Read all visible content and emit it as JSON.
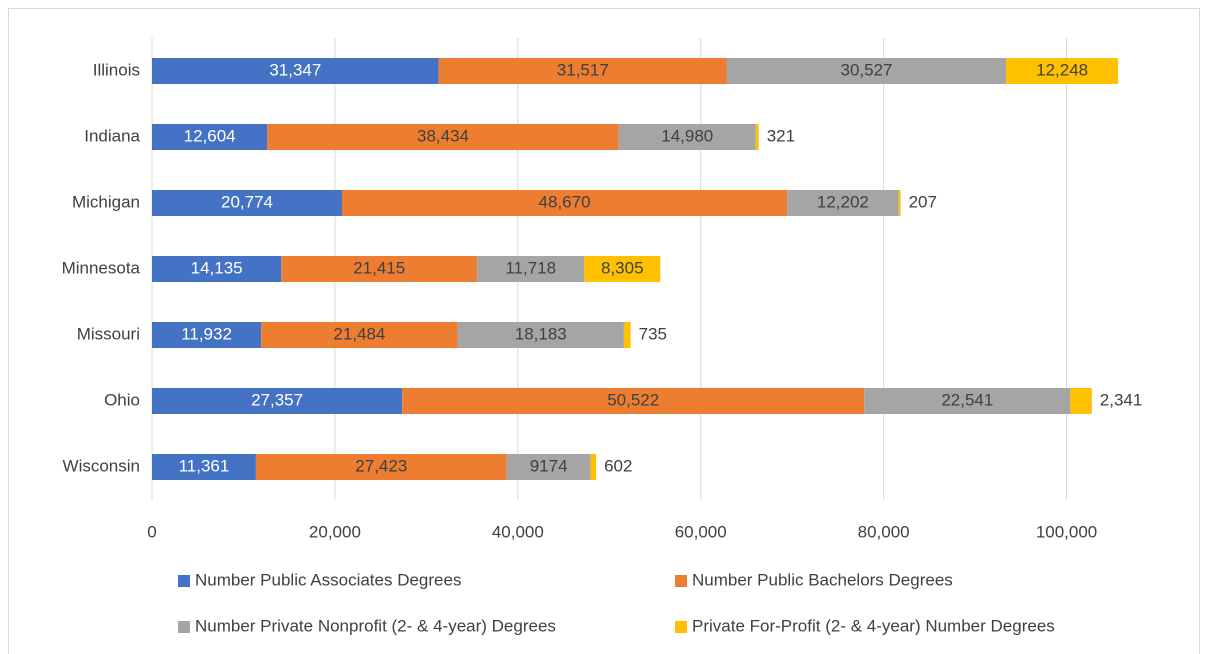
{
  "chart_data": {
    "type": "stacked-bar-horizontal",
    "categories": [
      "Illinois",
      "Indiana",
      "Michigan",
      "Minnesota",
      "Missouri",
      "Ohio",
      "Wisconsin"
    ],
    "series": [
      {
        "name": "Number Public Associates Degrees",
        "color": "#4472c4",
        "values": [
          31347,
          12604,
          20774,
          14135,
          11932,
          27357,
          11361
        ],
        "value_labels": [
          "31,347",
          "12,604",
          "20,774",
          "14,135",
          "11,932",
          "27,357",
          "11,361"
        ]
      },
      {
        "name": "Number Public Bachelors Degrees",
        "color": "#ed7d31",
        "values": [
          31517,
          38434,
          48670,
          21415,
          21484,
          50522,
          27423
        ],
        "value_labels": [
          "31,517",
          "38,434",
          "48,670",
          "21,415",
          "21,484",
          "50,522",
          "27,423"
        ]
      },
      {
        "name": "Number Private Nonprofit (2- & 4-year) Degrees",
        "color": "#a5a5a5",
        "values": [
          30527,
          14980,
          12202,
          11718,
          18183,
          22541,
          9174
        ],
        "value_labels": [
          "30,527",
          "14,980",
          "12,202",
          "11,718",
          "18,183",
          "22,541",
          "9174"
        ]
      },
      {
        "name": "Private For-Profit (2- & 4-year) Number Degrees",
        "color": "#ffc000",
        "values": [
          12248,
          321,
          207,
          8305,
          735,
          2341,
          602
        ],
        "value_labels": [
          "12,248",
          "321",
          "207",
          "8,305",
          "735",
          "2,341",
          "602"
        ]
      }
    ],
    "xlim": [
      0,
      110000
    ],
    "xticks": [
      0,
      {
        "value": 20000,
        "label": "20,000"
      },
      {
        "value": 40000,
        "label": "40,000"
      },
      {
        "value": 60000,
        "label": "60,000"
      },
      {
        "value": 80000,
        "label": "80,000"
      },
      {
        "value": 100000,
        "label": "100,000"
      }
    ],
    "grid": true,
    "legend": "bottom"
  }
}
